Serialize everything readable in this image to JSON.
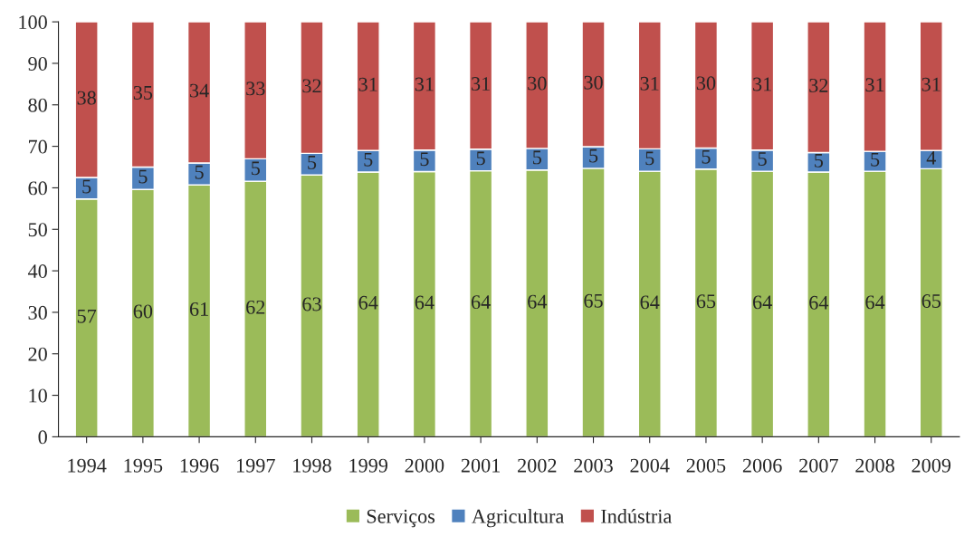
{
  "chart_data": {
    "type": "bar",
    "stacked": true,
    "categories": [
      "1994",
      "1995",
      "1996",
      "1997",
      "1998",
      "1999",
      "2000",
      "2001",
      "2002",
      "2003",
      "2004",
      "2005",
      "2006",
      "2007",
      "2008",
      "2009"
    ],
    "series": [
      {
        "name": "Serviços",
        "color": "#9bbb59",
        "values": [
          57.3,
          59.6,
          60.7,
          61.6,
          63.1,
          63.8,
          63.9,
          64.1,
          64.3,
          64.7,
          64.0,
          64.5,
          64.0,
          63.8,
          64.0,
          64.6
        ],
        "value_labels": [
          "57",
          "60",
          "61",
          "62",
          "63",
          "64",
          "64",
          "64",
          "64",
          "65",
          "64",
          "65",
          "64",
          "64",
          "64",
          "65"
        ]
      },
      {
        "name": "Agricultura",
        "color": "#4f81bd",
        "values": [
          5.2,
          5.4,
          5.3,
          5.4,
          5.2,
          5.2,
          5.2,
          5.2,
          5.2,
          5.2,
          5.4,
          5.1,
          5.1,
          4.7,
          4.8,
          4.4
        ],
        "value_labels": [
          "5",
          "5",
          "5",
          "5",
          "5",
          "5",
          "5",
          "5",
          "5",
          "5",
          "5",
          "5",
          "5",
          "5",
          "5",
          "4"
        ]
      },
      {
        "name": "Indústria",
        "color": "#c0504d",
        "values": [
          37.5,
          35.0,
          34.0,
          33.0,
          31.7,
          31.0,
          30.9,
          30.7,
          30.5,
          30.1,
          30.6,
          30.4,
          30.9,
          31.5,
          31.2,
          31.0
        ],
        "value_labels": [
          "38",
          "35",
          "34",
          "33",
          "32",
          "31",
          "31",
          "31",
          "30",
          "30",
          "31",
          "30",
          "31",
          "32",
          "31",
          "31"
        ]
      }
    ],
    "ylim": [
      0,
      100
    ],
    "yticks": [
      0,
      10,
      20,
      30,
      40,
      50,
      60,
      70,
      80,
      90,
      100
    ],
    "grid": false,
    "legend": "bottom"
  }
}
